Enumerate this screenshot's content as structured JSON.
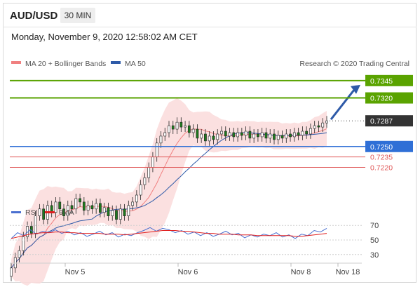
{
  "header": {
    "symbol": "AUD/USD",
    "timeframe": "30 MIN",
    "datetime": "Monday, November 9, 2020 12:58:02 AM CET"
  },
  "legend": {
    "ma20": "MA 20 + Bollinger Bands",
    "ma50": "MA 50",
    "credit": "Research © 2020 Trading Central",
    "rsi": "RSI",
    "rsi_ma": "9MA"
  },
  "colors": {
    "up_level": "#5aa300",
    "pivot": "#2f6fd6",
    "down_level": "#e05a5a",
    "last_price": "#333333",
    "ma20": "#f08080",
    "bb_fill": "#fadada",
    "ma50": "#2e5aa8",
    "rsi": "#4a6fd0",
    "rsi_ma": "#e02020",
    "arrow": "#2e5aa8"
  },
  "chart_data": [
    {
      "type": "candlestick",
      "x_tick_labels": [
        "Nov 5",
        "Nov 6",
        "Nov 8",
        "Nov 18"
      ],
      "ylim": [
        0.718,
        0.736
      ],
      "price_levels": [
        {
          "label": "0.7345",
          "value": 0.7345,
          "kind": "resistance"
        },
        {
          "label": "0.7320",
          "value": 0.732,
          "kind": "resistance"
        },
        {
          "label": "0.7287",
          "value": 0.7287,
          "kind": "last"
        },
        {
          "label": "0.7250",
          "value": 0.725,
          "kind": "pivot"
        },
        {
          "label": "0.7235",
          "value": 0.7235,
          "kind": "support"
        },
        {
          "label": "0.7220",
          "value": 0.722,
          "kind": "support"
        }
      ],
      "close_series": [
        0.7075,
        0.709,
        0.71,
        0.712,
        0.7135,
        0.7125,
        0.715,
        0.716,
        0.7145,
        0.7165,
        0.7155,
        0.717,
        0.716,
        0.715,
        0.7165,
        0.716,
        0.7175,
        0.717,
        0.7158,
        0.7165,
        0.716,
        0.7168,
        0.7155,
        0.7162,
        0.715,
        0.7158,
        0.7145,
        0.716,
        0.715,
        0.7165,
        0.717,
        0.718,
        0.7195,
        0.7205,
        0.722,
        0.7235,
        0.7255,
        0.7265,
        0.727,
        0.728,
        0.7275,
        0.7285,
        0.7278,
        0.728,
        0.727,
        0.7275,
        0.7262,
        0.7268,
        0.7258,
        0.7265,
        0.726,
        0.7268,
        0.7272,
        0.7265,
        0.727,
        0.7264,
        0.727,
        0.7266,
        0.7272,
        0.7262,
        0.7268,
        0.7264,
        0.727,
        0.7262,
        0.7268,
        0.726,
        0.7266,
        0.7262,
        0.7268,
        0.7264,
        0.727,
        0.7266,
        0.7272,
        0.7268,
        0.7276,
        0.728,
        0.7278,
        0.7284,
        0.7287
      ]
    },
    {
      "type": "line",
      "name": "RSI",
      "y_ticks": [
        70,
        50,
        30
      ],
      "ylim": [
        25,
        75
      ],
      "rsi": [
        52,
        60,
        56,
        64,
        58,
        62,
        60,
        64,
        59,
        62,
        57,
        60,
        55,
        58,
        62,
        57,
        60,
        54,
        58,
        56,
        60,
        63,
        67,
        62,
        66,
        64,
        60,
        63,
        58,
        61,
        56,
        60,
        55,
        58,
        62,
        57,
        59,
        53,
        57,
        54,
        58,
        56,
        60,
        54,
        57,
        52,
        58,
        56,
        63,
        61,
        66
      ],
      "rsi_ma": [
        52,
        54,
        56,
        58,
        59,
        60,
        60,
        61,
        61,
        60,
        60,
        59,
        59,
        59,
        59,
        58,
        58,
        58,
        57,
        58,
        59,
        60,
        61,
        62,
        63,
        63,
        63,
        62,
        62,
        61,
        60,
        59,
        59,
        58,
        58,
        58,
        57,
        57,
        57,
        56,
        56,
        56,
        56,
        56,
        56,
        55,
        55,
        56,
        57,
        58,
        59
      ]
    }
  ]
}
